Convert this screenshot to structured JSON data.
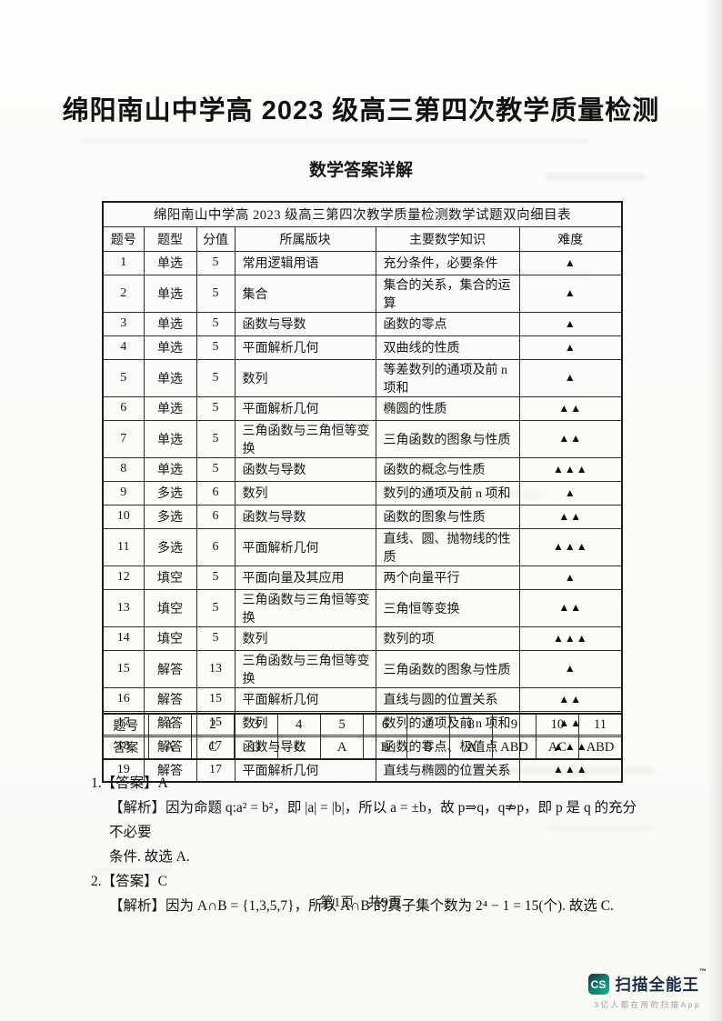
{
  "page": {
    "title": "绵阳南山中学高 2023 级高三第四次教学质量检测",
    "subtitle": "数学答案详解",
    "footer_text": "第1页　共9页"
  },
  "spec_table": {
    "title": "绵阳南山中学高 2023 级高三第四次教学质量检测数学试题双向细目表",
    "headers": [
      "题号",
      "题型",
      "分值",
      "所属版块",
      "主要数学知识",
      "难度"
    ],
    "rows": [
      [
        "1",
        "单选",
        "5",
        "常用逻辑用语",
        "充分条件，必要条件",
        "▲"
      ],
      [
        "2",
        "单选",
        "5",
        "集合",
        "集合的关系，集合的运算",
        "▲"
      ],
      [
        "3",
        "单选",
        "5",
        "函数与导数",
        "函数的零点",
        "▲"
      ],
      [
        "4",
        "单选",
        "5",
        "平面解析几何",
        "双曲线的性质",
        "▲"
      ],
      [
        "5",
        "单选",
        "5",
        "数列",
        "等差数列的通项及前 n 项和",
        "▲"
      ],
      [
        "6",
        "单选",
        "5",
        "平面解析几何",
        "椭圆的性质",
        "▲▲"
      ],
      [
        "7",
        "单选",
        "5",
        "三角函数与三角恒等变换",
        "三角函数的图象与性质",
        "▲▲"
      ],
      [
        "8",
        "单选",
        "5",
        "函数与导数",
        "函数的概念与性质",
        "▲▲▲"
      ],
      [
        "9",
        "多选",
        "6",
        "数列",
        "数列的通项及前 n 项和",
        "▲"
      ],
      [
        "10",
        "多选",
        "6",
        "函数与导数",
        "函数的图象与性质",
        "▲▲"
      ],
      [
        "11",
        "多选",
        "6",
        "平面解析几何",
        "直线、圆、抛物线的性质",
        "▲▲▲"
      ],
      [
        "12",
        "填空",
        "5",
        "平面向量及其应用",
        "两个向量平行",
        "▲"
      ],
      [
        "13",
        "填空",
        "5",
        "三角函数与三角恒等变换",
        "三角恒等变换",
        "▲▲"
      ],
      [
        "14",
        "填空",
        "5",
        "数列",
        "数列的项",
        "▲▲▲"
      ],
      [
        "15",
        "解答",
        "13",
        "三角函数与三角恒等变换",
        "三角函数的图象与性质",
        "▲"
      ],
      [
        "16",
        "解答",
        "15",
        "平面解析几何",
        "直线与圆的位置关系",
        "▲▲"
      ],
      [
        "17",
        "解答",
        "15",
        "数列",
        "数列的通项及前 n 项和",
        "▲▲"
      ],
      [
        "18",
        "解答",
        "17",
        "函数与导数",
        "函数的零点、极值点",
        "▲▲▲"
      ],
      [
        "19",
        "解答",
        "17",
        "平面解析几何",
        "直线与椭圆的位置关系",
        "▲▲▲"
      ]
    ]
  },
  "answer_table": {
    "row1_label": "题号",
    "row2_label": "答案",
    "numbers": [
      "1",
      "2",
      "3",
      "4",
      "5",
      "6",
      "7",
      "8",
      "9",
      "10",
      "11"
    ],
    "answers": [
      "A",
      "C",
      "D",
      "C",
      "A",
      "B",
      "B",
      "A",
      "ABD",
      "AC",
      "ABD"
    ]
  },
  "solutions": [
    {
      "heading": "1.【答案】A",
      "lines": [
        "【解析】因为命题 q:a² = b²，即 |a| = |b|，所以 a = ±b，故 p⇒q，q⇏p，即 p 是 q 的充分不必要",
        "条件. 故选 A."
      ]
    },
    {
      "heading": "2.【答案】C",
      "lines": [
        "【解析】因为 A∩B = {1,3,5,7}，所以 A∩B 的真子集个数为 2⁴ − 1 = 15(个). 故选 C."
      ]
    }
  ],
  "watermark": {
    "badge": "CS",
    "brand": "扫描全能王",
    "trademark": "™",
    "tagline": "3亿人都在用的扫描App",
    "badge_color_top": "#20303e",
    "badge_color_bottom": "#10b894",
    "brand_color": "#1b2b47"
  }
}
